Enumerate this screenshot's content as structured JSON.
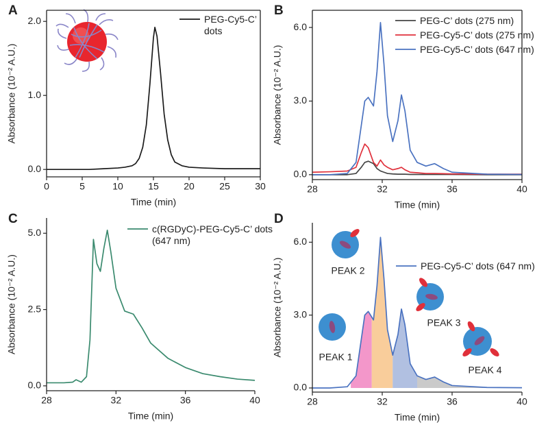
{
  "chart_data": [
    {
      "type": "line",
      "panel": "A",
      "x_label": "Time (min)",
      "y_label": "Absorbance (10⁻² A.U.)",
      "x": [
        0,
        2,
        4,
        6,
        8,
        10,
        11,
        12,
        12.5,
        13,
        13.5,
        14,
        14.5,
        15,
        15.2,
        15.5,
        16,
        16.5,
        17,
        17.5,
        18,
        19,
        20,
        22,
        25,
        28,
        30
      ],
      "series": [
        {
          "name": "PEG-Cy5-C’ dots",
          "color": "#1a1a1a",
          "values": [
            0,
            0,
            0,
            0,
            0.01,
            0.02,
            0.03,
            0.05,
            0.08,
            0.15,
            0.3,
            0.6,
            1.15,
            1.78,
            1.92,
            1.8,
            1.3,
            0.75,
            0.4,
            0.2,
            0.1,
            0.05,
            0.03,
            0.02,
            0.01,
            0.01,
            0.01
          ]
        }
      ],
      "xlim": [
        0,
        30
      ],
      "xticks": [
        0,
        5,
        10,
        15,
        20,
        25,
        30
      ],
      "ylim": [
        -0.1,
        2.15
      ],
      "yticks": [
        {
          "value": 0,
          "label": "0.0"
        },
        {
          "value": 1,
          "label": "1.0"
        },
        {
          "value": 2,
          "label": "2.0"
        }
      ]
    },
    {
      "type": "line",
      "panel": "B",
      "x_label": "Time (min)",
      "y_label": "Absorbance (10⁻² A.U.)",
      "x": [
        28,
        29,
        30,
        30.5,
        30.8,
        31,
        31.2,
        31.5,
        31.7,
        31.9,
        32.1,
        32.3,
        32.6,
        32.9,
        33.1,
        33.3,
        33.6,
        34,
        34.5,
        35,
        35.5,
        36,
        38,
        40
      ],
      "series": [
        {
          "name": "PEG-C’ dots (275 nm)",
          "color": "#444444",
          "values": [
            0,
            0,
            0,
            0.05,
            0.3,
            0.5,
            0.55,
            0.45,
            0.25,
            0.15,
            0.1,
            0.05,
            0.03,
            0.02,
            0.02,
            0.02,
            0.01,
            0.01,
            0.01,
            0.01,
            0.01,
            0.01,
            0,
            0
          ]
        },
        {
          "name": "PEG-Cy5-C’ dots (275 nm)",
          "color": "#e0313c",
          "values": [
            0.1,
            0.12,
            0.15,
            0.3,
            0.9,
            1.25,
            1.1,
            0.5,
            0.35,
            0.6,
            0.4,
            0.3,
            0.2,
            0.25,
            0.3,
            0.2,
            0.1,
            0.08,
            0.05,
            0.05,
            0.04,
            0.03,
            0.02,
            0.02
          ]
        },
        {
          "name": "PEG-Cy5-C’ dots (647 nm)",
          "color": "#4a72c0",
          "values": [
            0,
            0,
            0.05,
            0.5,
            2.0,
            3.0,
            3.15,
            2.8,
            4.2,
            6.2,
            4.5,
            2.4,
            1.35,
            2.2,
            3.25,
            2.6,
            1.0,
            0.5,
            0.35,
            0.45,
            0.25,
            0.1,
            0.02,
            0.01
          ]
        }
      ],
      "xlim": [
        28,
        40
      ],
      "xticks": [
        28,
        32,
        36,
        40
      ],
      "ylim": [
        -0.2,
        6.7
      ],
      "yticks": [
        {
          "value": 0,
          "label": "0.0"
        },
        {
          "value": 3,
          "label": "3.0"
        },
        {
          "value": 6,
          "label": "6.0"
        }
      ]
    },
    {
      "type": "line",
      "panel": "C",
      "x_label": "Time (min)",
      "y_label": "Absorbance (10⁻² A.U.)",
      "x": [
        28,
        29,
        29.5,
        29.7,
        30,
        30.3,
        30.5,
        30.7,
        30.9,
        31.1,
        31.3,
        31.5,
        31.7,
        32,
        32.5,
        33,
        33.5,
        34,
        35,
        36,
        37,
        38,
        39,
        40
      ],
      "series": [
        {
          "name": "c(RGDyC)-PEG-Cy5-C’ dots (647 nm)",
          "color": "#3a8a6e",
          "values": [
            0.1,
            0.1,
            0.12,
            0.2,
            0.12,
            0.3,
            1.5,
            4.8,
            4.0,
            3.75,
            4.5,
            5.1,
            4.4,
            3.2,
            2.45,
            2.35,
            1.9,
            1.4,
            0.9,
            0.6,
            0.4,
            0.3,
            0.22,
            0.18
          ]
        }
      ],
      "xlim": [
        28,
        40
      ],
      "xticks": [
        28,
        32,
        36,
        40
      ],
      "ylim": [
        -0.16,
        5.5
      ],
      "yticks": [
        {
          "value": 0,
          "label": "0.0"
        },
        2.5,
        {
          "value": 5,
          "label": "5.0"
        }
      ]
    },
    {
      "type": "line",
      "panel": "D",
      "x_label": "Time (min)",
      "y_label": "Absorbance (10⁻² A.U.)",
      "x": [
        28,
        29,
        30,
        30.5,
        30.8,
        31,
        31.2,
        31.5,
        31.7,
        31.9,
        32.1,
        32.3,
        32.6,
        32.9,
        33.1,
        33.3,
        33.6,
        34,
        34.5,
        35,
        35.5,
        36,
        38,
        40
      ],
      "series": [
        {
          "name": "PEG-Cy5-C’ dots (647 nm)",
          "color": "#4a72c0",
          "values": [
            0,
            0,
            0.05,
            0.5,
            2.0,
            3.0,
            3.15,
            2.8,
            4.2,
            6.2,
            4.5,
            2.4,
            1.35,
            2.2,
            3.25,
            2.6,
            1.0,
            0.5,
            0.35,
            0.45,
            0.25,
            0.1,
            0.02,
            0.01
          ]
        }
      ],
      "regions": [
        {
          "label": "PEAK 1",
          "color": "#f28cc4",
          "range": [
            30.2,
            31.4
          ]
        },
        {
          "label": "PEAK 2",
          "color": "#f8c890",
          "range": [
            31.4,
            32.6
          ]
        },
        {
          "label": "PEAK 3",
          "color": "#a9b9de",
          "range": [
            32.6,
            34
          ]
        },
        {
          "label": "PEAK 4",
          "color": "#c4c4c4",
          "range": [
            34,
            40
          ]
        }
      ],
      "xlim": [
        28,
        40
      ],
      "xticks": [
        28,
        32,
        36,
        40
      ],
      "ylim": [
        -0.17,
        6.8
      ],
      "yticks": [
        {
          "value": 0,
          "label": "0.0"
        },
        {
          "value": 3,
          "label": "3.0"
        },
        {
          "value": 6,
          "label": "6.0"
        }
      ]
    }
  ]
}
